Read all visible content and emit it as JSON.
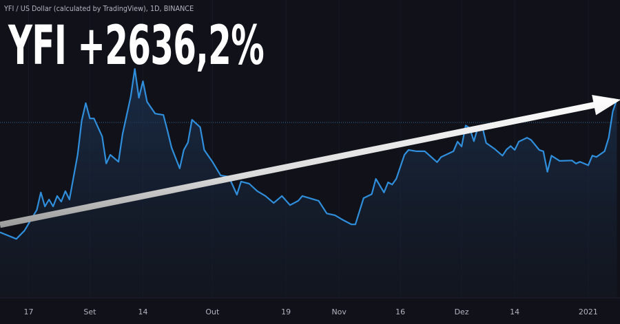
{
  "header": {
    "source_title": "YFI / US Dollar (calculated by TradingView), 1D, BINANCE",
    "headline": "YFI +2636,2%"
  },
  "colors": {
    "background": "#111219",
    "line": "#2f8fdd",
    "arrow": "#e8e8e8",
    "axis_text": "#b2b5be"
  },
  "chart_data": {
    "type": "area",
    "title": "YFI / US Dollar (calculated by TradingView), 1D, BINANCE",
    "annotation": "YFI +2636,2%",
    "xlabel": "",
    "ylabel": "",
    "y_axis_shown": false,
    "grid": false,
    "x_ticks": [
      {
        "date": "2020-08-17",
        "label": "17"
      },
      {
        "date": "2020-09-01",
        "label": "Set"
      },
      {
        "date": "2020-09-14",
        "label": "14"
      },
      {
        "date": "2020-10-01",
        "label": "Out"
      },
      {
        "date": "2020-10-19",
        "label": "19"
      },
      {
        "date": "2020-11-01",
        "label": "Nov"
      },
      {
        "date": "2020-11-16",
        "label": "16"
      },
      {
        "date": "2020-12-01",
        "label": "Dez"
      },
      {
        "date": "2020-12-14",
        "label": "14"
      },
      {
        "date": "2021-01-01",
        "label": "2021"
      }
    ],
    "xlim": [
      "2020-08-10",
      "2021-01-08"
    ],
    "ylim": [
      0,
      55600
    ],
    "trend_arrow": {
      "from": {
        "date": "2020-08-10",
        "value": 7400
      },
      "to": {
        "date": "2021-01-09",
        "value": 36000
      }
    },
    "points": [
      [
        "2020-08-10",
        5700
      ],
      [
        "2020-08-14",
        4200
      ],
      [
        "2020-08-16",
        6100
      ],
      [
        "2020-08-19",
        10800
      ],
      [
        "2020-08-20",
        14800
      ],
      [
        "2020-08-21",
        11600
      ],
      [
        "2020-08-22",
        13200
      ],
      [
        "2020-08-23",
        11600
      ],
      [
        "2020-08-24",
        14000
      ],
      [
        "2020-08-25",
        12700
      ],
      [
        "2020-08-26",
        15100
      ],
      [
        "2020-08-27",
        13200
      ],
      [
        "2020-08-29",
        23400
      ],
      [
        "2020-08-30",
        31200
      ],
      [
        "2020-08-31",
        35200
      ],
      [
        "2020-09-01",
        31700
      ],
      [
        "2020-09-02",
        31700
      ],
      [
        "2020-09-04",
        27600
      ],
      [
        "2020-09-05",
        21400
      ],
      [
        "2020-09-06",
        23400
      ],
      [
        "2020-09-08",
        21800
      ],
      [
        "2020-09-09",
        28100
      ],
      [
        "2020-09-11",
        36700
      ],
      [
        "2020-09-12",
        43000
      ],
      [
        "2020-09-13",
        36400
      ],
      [
        "2020-09-14",
        40200
      ],
      [
        "2020-09-15",
        35500
      ],
      [
        "2020-09-17",
        32800
      ],
      [
        "2020-09-19",
        32500
      ],
      [
        "2020-09-20",
        28900
      ],
      [
        "2020-09-21",
        25000
      ],
      [
        "2020-09-23",
        20300
      ],
      [
        "2020-09-24",
        24500
      ],
      [
        "2020-09-25",
        26200
      ],
      [
        "2020-09-26",
        31400
      ],
      [
        "2020-09-28",
        29700
      ],
      [
        "2020-09-29",
        24500
      ],
      [
        "2020-10-01",
        21800
      ],
      [
        "2020-10-03",
        18700
      ],
      [
        "2020-10-05",
        18400
      ],
      [
        "2020-10-07",
        14300
      ],
      [
        "2020-10-08",
        17300
      ],
      [
        "2020-10-10",
        16800
      ],
      [
        "2020-10-12",
        15100
      ],
      [
        "2020-10-14",
        14000
      ],
      [
        "2020-10-16",
        12400
      ],
      [
        "2020-10-18",
        14000
      ],
      [
        "2020-10-20",
        11900
      ],
      [
        "2020-10-22",
        12900
      ],
      [
        "2020-10-23",
        14000
      ],
      [
        "2020-10-27",
        12900
      ],
      [
        "2020-10-29",
        10000
      ],
      [
        "2020-10-31",
        9600
      ],
      [
        "2020-11-02",
        8500
      ],
      [
        "2020-11-04",
        7500
      ],
      [
        "2020-11-05",
        7500
      ],
      [
        "2020-11-07",
        13500
      ],
      [
        "2020-11-09",
        14400
      ],
      [
        "2020-11-10",
        17900
      ],
      [
        "2020-11-12",
        14800
      ],
      [
        "2020-11-13",
        17100
      ],
      [
        "2020-11-14",
        16600
      ],
      [
        "2020-11-15",
        17900
      ],
      [
        "2020-11-17",
        23400
      ],
      [
        "2020-11-18",
        24500
      ],
      [
        "2020-11-20",
        24200
      ],
      [
        "2020-11-22",
        24200
      ],
      [
        "2020-11-25",
        21700
      ],
      [
        "2020-11-26",
        22900
      ],
      [
        "2020-11-29",
        24200
      ],
      [
        "2020-11-30",
        26400
      ],
      [
        "2020-12-01",
        25300
      ],
      [
        "2020-12-02",
        30100
      ],
      [
        "2020-12-03",
        29500
      ],
      [
        "2020-12-04",
        26500
      ],
      [
        "2020-12-05",
        29700
      ],
      [
        "2020-12-06",
        30100
      ],
      [
        "2020-12-07",
        26100
      ],
      [
        "2020-12-09",
        24800
      ],
      [
        "2020-12-11",
        23200
      ],
      [
        "2020-12-12",
        24600
      ],
      [
        "2020-12-13",
        25400
      ],
      [
        "2020-12-14",
        24500
      ],
      [
        "2020-12-15",
        26400
      ],
      [
        "2020-12-17",
        27300
      ],
      [
        "2020-12-18",
        26800
      ],
      [
        "2020-12-20",
        24500
      ],
      [
        "2020-12-21",
        24200
      ],
      [
        "2020-12-22",
        19500
      ],
      [
        "2020-12-23",
        23200
      ],
      [
        "2020-12-25",
        22000
      ],
      [
        "2020-12-28",
        22100
      ],
      [
        "2020-12-29",
        21400
      ],
      [
        "2020-12-30",
        21800
      ],
      [
        "2021-01-01",
        21000
      ],
      [
        "2021-01-02",
        23200
      ],
      [
        "2021-01-03",
        22900
      ],
      [
        "2021-01-05",
        24200
      ],
      [
        "2021-01-06",
        27300
      ],
      [
        "2021-01-07",
        33300
      ],
      [
        "2021-01-08",
        36000
      ]
    ]
  }
}
